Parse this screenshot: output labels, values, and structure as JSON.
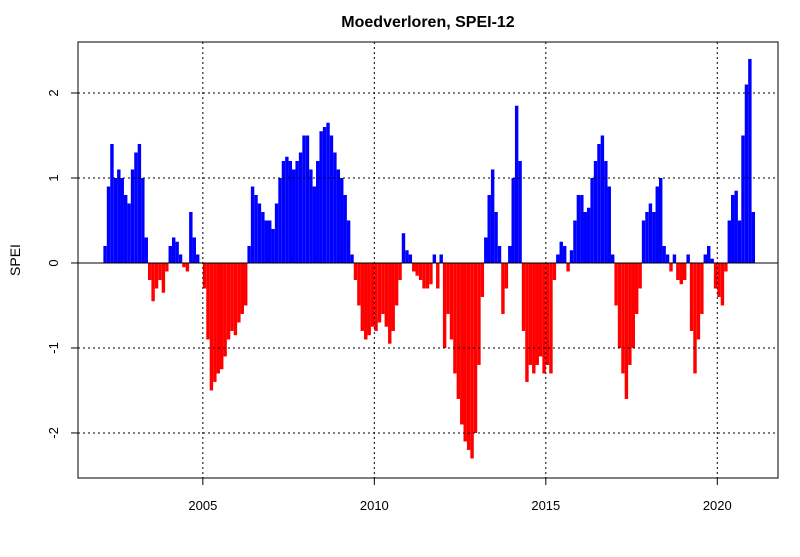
{
  "chart_data": {
    "type": "bar",
    "title": "Moedverloren, SPEI-12",
    "y_label": "SPEI",
    "colors": {
      "positive": "#0000ff",
      "negative": "#ff0000"
    },
    "x": [
      2002,
      2002.1,
      2002.2,
      2002.3,
      2002.4,
      2002.5,
      2002.6,
      2002.7,
      2002.8,
      2002.9,
      2003,
      2003.1,
      2003.2,
      2003.3,
      2003.4,
      2003.5,
      2003.6,
      2003.7,
      2003.8,
      2003.9,
      2004,
      2004.1,
      2004.2,
      2004.3,
      2004.4,
      2004.5,
      2004.6,
      2004.7,
      2004.8,
      2004.9,
      2005,
      2005.1,
      2005.2,
      2005.3,
      2005.4,
      2005.5,
      2005.6,
      2005.7,
      2005.8,
      2005.9,
      2006,
      2006.1,
      2006.2,
      2006.3,
      2006.4,
      2006.5,
      2006.6,
      2006.7,
      2006.8,
      2006.9,
      2007,
      2007.1,
      2007.2,
      2007.3,
      2007.4,
      2007.5,
      2007.6,
      2007.7,
      2007.8,
      2007.9,
      2008,
      2008.1,
      2008.2,
      2008.3,
      2008.4,
      2008.5,
      2008.6,
      2008.7,
      2008.8,
      2008.9,
      2009,
      2009.1,
      2009.2,
      2009.3,
      2009.4,
      2009.5,
      2009.6,
      2009.7,
      2009.8,
      2009.9,
      2010,
      2010.1,
      2010.2,
      2010.3,
      2010.4,
      2010.5,
      2010.6,
      2010.7,
      2010.8,
      2010.9,
      2011,
      2011.1,
      2011.2,
      2011.3,
      2011.4,
      2011.5,
      2011.6,
      2011.7,
      2011.8,
      2011.9,
      2012,
      2012.1,
      2012.2,
      2012.3,
      2012.4,
      2012.5,
      2012.6,
      2012.7,
      2012.8,
      2012.9,
      2013,
      2013.1,
      2013.2,
      2013.3,
      2013.4,
      2013.5,
      2013.6,
      2013.7,
      2013.8,
      2013.9,
      2014,
      2014.1,
      2014.2,
      2014.3,
      2014.4,
      2014.5,
      2014.6,
      2014.7,
      2014.8,
      2014.9,
      2015,
      2015.1,
      2015.2,
      2015.3,
      2015.4,
      2015.5,
      2015.6,
      2015.7,
      2015.8,
      2015.9,
      2016,
      2016.1,
      2016.2,
      2016.3,
      2016.4,
      2016.5,
      2016.6,
      2016.7,
      2016.8,
      2016.9,
      2017,
      2017.1,
      2017.2,
      2017.3,
      2017.4,
      2017.5,
      2017.6,
      2017.7,
      2017.8,
      2017.9,
      2018,
      2018.1,
      2018.2,
      2018.3,
      2018.4,
      2018.5,
      2018.6,
      2018.7,
      2018.8,
      2018.9,
      2019,
      2019.1,
      2019.2,
      2019.3,
      2019.4,
      2019.5,
      2019.6,
      2019.7,
      2019.8,
      2019.9,
      2020,
      2020.1,
      2020.2,
      2020.3,
      2020.4,
      2020.5,
      2020.6,
      2020.7,
      2020.8,
      2020.9,
      2021
    ],
    "values": [
      0,
      0.2,
      0.9,
      1.4,
      1.0,
      1.1,
      1.0,
      0.8,
      0.7,
      1.1,
      1.3,
      1.4,
      1.0,
      0.3,
      -0.2,
      -0.45,
      -0.3,
      -0.2,
      -0.35,
      -0.1,
      0.2,
      0.3,
      0.25,
      0.1,
      -0.05,
      -0.1,
      0.6,
      0.3,
      0.1,
      0.0,
      -0.3,
      -0.9,
      -1.5,
      -1.4,
      -1.3,
      -1.25,
      -1.1,
      -0.9,
      -0.8,
      -0.85,
      -0.7,
      -0.6,
      -0.5,
      0.2,
      0.9,
      0.8,
      0.7,
      0.6,
      0.5,
      0.5,
      0.4,
      0.7,
      1.0,
      1.2,
      1.25,
      1.2,
      1.1,
      1.2,
      1.3,
      1.5,
      1.5,
      1.1,
      0.9,
      1.2,
      1.55,
      1.6,
      1.65,
      1.5,
      1.3,
      1.1,
      1.0,
      0.8,
      0.5,
      0.1,
      -0.2,
      -0.5,
      -0.8,
      -0.9,
      -0.85,
      -0.75,
      -0.8,
      -0.7,
      -0.6,
      -0.75,
      -0.95,
      -0.8,
      -0.5,
      -0.2,
      0.35,
      0.15,
      0.1,
      -0.1,
      -0.15,
      -0.2,
      -0.3,
      -0.3,
      -0.25,
      0.1,
      -0.3,
      0.1,
      -1.0,
      -0.6,
      -0.9,
      -1.3,
      -1.6,
      -1.9,
      -2.1,
      -2.2,
      -2.3,
      -2.0,
      -1.2,
      -0.4,
      0.3,
      0.8,
      1.1,
      0.6,
      0.2,
      -0.6,
      -0.3,
      0.2,
      1.0,
      1.85,
      1.2,
      -0.8,
      -1.4,
      -1.2,
      -1.3,
      -1.2,
      -1.1,
      -1.3,
      -1.2,
      -1.3,
      -0.2,
      0.1,
      0.25,
      0.2,
      -0.1,
      0.15,
      0.5,
      0.8,
      0.8,
      0.6,
      0.65,
      1.0,
      1.2,
      1.4,
      1.5,
      1.2,
      0.9,
      0.1,
      -0.5,
      -1.0,
      -1.3,
      -1.6,
      -1.2,
      -1.0,
      -0.6,
      -0.3,
      0.5,
      0.6,
      0.7,
      0.6,
      0.9,
      1.0,
      0.2,
      0.1,
      -0.1,
      0.1,
      -0.2,
      -0.25,
      -0.2,
      0.1,
      -0.8,
      -1.3,
      -0.9,
      -0.6,
      0.1,
      0.2,
      0.05,
      -0.3,
      -0.4,
      -0.5,
      -0.1,
      0.5,
      0.8,
      0.85,
      0.5,
      1.5,
      2.1,
      2.4,
      0.6
    ],
    "xlim": [
      2001.36,
      2021.77
    ],
    "ylim": [
      -2.53,
      2.6
    ],
    "xticks": [
      2005,
      2010,
      2015,
      2020
    ],
    "yticks": [
      -2,
      -1,
      0,
      1,
      2
    ],
    "grid": true
  }
}
